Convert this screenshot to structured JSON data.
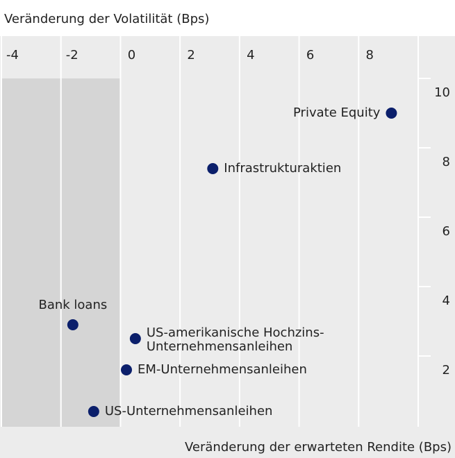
{
  "chart_data": {
    "type": "scatter",
    "xlabel": "Veränderung der Volatilität (Bps)",
    "ylabel": "Veränderung der erwarteten Rendite (Bps)",
    "labels": [
      "Private Equity",
      "Infrastrukturaktien",
      "Bank loans",
      [
        "US-amerikanische Hochzins-",
        "Unternehmensanleihen"
      ],
      "EM-Unternehmensanleihen",
      "US-Unternehmensanleihen"
    ],
    "x": [
      9.1,
      3.1,
      -1.6,
      0.5,
      0.2,
      -0.9
    ],
    "y": [
      9.0,
      7.4,
      2.9,
      2.5,
      1.6,
      0.4
    ],
    "color": "#0b1f6b",
    "xlim": [
      -4,
      10
    ],
    "xticks": [
      -4,
      -2,
      0,
      2,
      4,
      6,
      8
    ],
    "ylim": [
      0,
      10
    ],
    "yticks": [
      2,
      4,
      6,
      8,
      10
    ],
    "grid": true
  }
}
